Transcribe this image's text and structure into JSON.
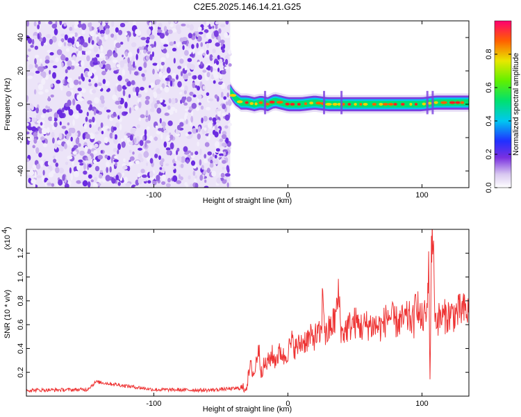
{
  "chart_data": [
    {
      "type": "heatmap",
      "title": "C2E5.2025.146.14.21.G25",
      "xlabel": "Height of straight line (km)",
      "ylabel": "Frequency (Hz)",
      "xlim": [
        -195,
        135
      ],
      "ylim": [
        -50,
        50
      ],
      "xticks": [
        -100,
        0,
        100
      ],
      "yticks": [
        -40,
        -20,
        0,
        20,
        40
      ],
      "noise_region": {
        "x": [
          -195,
          -43
        ],
        "y": [
          -50,
          50
        ],
        "mean_amplitude": 0.12
      },
      "signal_band": {
        "x_start": -43,
        "x_end": 135,
        "frequency_center": 1,
        "frequency_halfwidth": 3,
        "peak_amplitude": 1.0,
        "trace": [
          [
            -43,
            8
          ],
          [
            -40,
            4
          ],
          [
            -35,
            1
          ],
          [
            -30,
            1
          ],
          [
            -25,
            0
          ],
          [
            -20,
            1
          ],
          [
            -15,
            0
          ],
          [
            -10,
            2
          ],
          [
            -5,
            1
          ],
          [
            0,
            0
          ],
          [
            10,
            0
          ],
          [
            20,
            1
          ],
          [
            30,
            0
          ],
          [
            40,
            0
          ],
          [
            60,
            0
          ],
          [
            80,
            0
          ],
          [
            100,
            0
          ],
          [
            110,
            1
          ],
          [
            120,
            1
          ],
          [
            130,
            1
          ],
          [
            135,
            1
          ]
        ]
      },
      "colorbar": {
        "label": "Normalized spectral amplitude",
        "range": [
          0,
          1
        ],
        "ticks": [
          0.0,
          0.2,
          0.4,
          0.6,
          0.8
        ]
      }
    },
    {
      "type": "line",
      "xlabel": "Height of straight line (km)",
      "ylabel": "SNR (10 * v/v)",
      "scale_label": "(x10",
      "scale_exponent": "4",
      "xlim": [
        -195,
        135
      ],
      "ylim": [
        0,
        14000
      ],
      "xticks": [
        -100,
        0,
        100
      ],
      "yticks": [
        2000,
        4000,
        6000,
        8000,
        10000,
        12000
      ],
      "ytick_labels": [
        "0.2",
        "0.4",
        "0.6",
        "0.8",
        "1.0",
        "1.2"
      ],
      "xtick_labels": [
        "-100",
        "0",
        "100"
      ],
      "color": "#ee3333",
      "series": [
        {
          "x": [
            -195,
            -150,
            -143,
            -100,
            -60,
            -31,
            -28,
            -25,
            -22,
            -20,
            -18,
            -15,
            -12,
            -10,
            -5,
            -3,
            0,
            3,
            6,
            10,
            15,
            20,
            25,
            26,
            28,
            30,
            35,
            38,
            40,
            45,
            50,
            55,
            60,
            70,
            75,
            80,
            85,
            90,
            94,
            96,
            98,
            100,
            104,
            105,
            106,
            107,
            108,
            110,
            115,
            120,
            125,
            130,
            135
          ],
          "y": [
            500,
            550,
            1200,
            550,
            500,
            700,
            2500,
            1800,
            4200,
            2200,
            2500,
            2800,
            3500,
            3000,
            3800,
            3200,
            3800,
            4500,
            4000,
            4500,
            4800,
            5000,
            5200,
            9000,
            5000,
            5400,
            6400,
            8500,
            5200,
            5800,
            6200,
            5800,
            6000,
            5800,
            6800,
            6200,
            6300,
            6600,
            6200,
            8600,
            6500,
            6400,
            7000,
            12500,
            1000,
            13000,
            13500,
            6400,
            6600,
            6800,
            6900,
            7200,
            7000
          ]
        }
      ]
    }
  ]
}
